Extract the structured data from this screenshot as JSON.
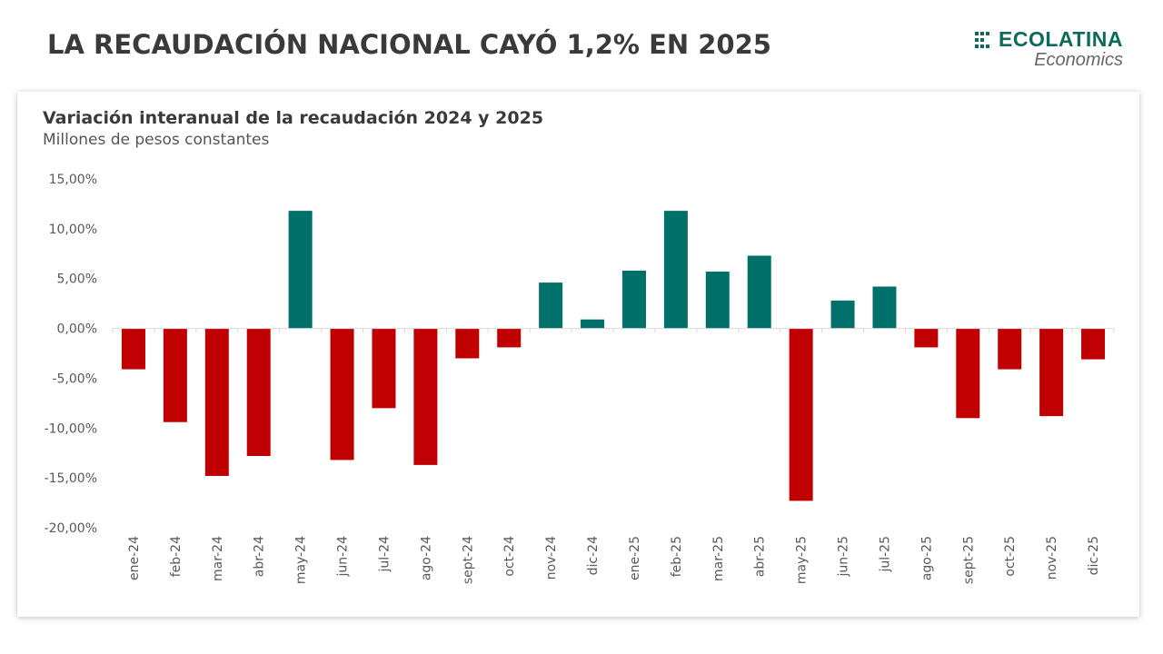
{
  "header": {
    "title": "LA RECAUDACIÓN NACIONAL CAYÓ 1,2% EN 2025",
    "logo_main": "ECOLATINA",
    "logo_sub": "Economics"
  },
  "colors": {
    "positive": "#00706a",
    "negative": "#c00000",
    "brand": "#0e6b5c"
  },
  "chart_data": {
    "type": "bar",
    "title": "Variación interanual de la recaudación 2024 y 2025",
    "subtitle": "Millones de pesos constantes",
    "categories": [
      "ene-24",
      "feb-24",
      "mar-24",
      "abr-24",
      "may-24",
      "jun-24",
      "jul-24",
      "ago-24",
      "sept-24",
      "oct-24",
      "nov-24",
      "dic-24",
      "ene-25",
      "feb-25",
      "mar-25",
      "abr-25",
      "may-25",
      "jun-25",
      "jul-25",
      "ago-25",
      "sept-25",
      "oct-25",
      "nov-25",
      "dic-25"
    ],
    "values": [
      -4.1,
      -9.4,
      -14.8,
      -12.8,
      11.8,
      -13.2,
      -8.0,
      -13.7,
      -3.0,
      -1.9,
      4.6,
      0.9,
      5.8,
      11.8,
      5.7,
      7.3,
      -17.3,
      2.8,
      4.2,
      -1.9,
      -9.0,
      -4.1,
      -8.8,
      -3.1
    ],
    "yticks": [
      15,
      10,
      5,
      0,
      -5,
      -10,
      -15,
      -20
    ],
    "ytick_labels": [
      "15,00%",
      "10,00%",
      "5,00%",
      "0,00%",
      "-5,00%",
      "-10,00%",
      "-15,00%",
      "-20,00%"
    ],
    "ylim": [
      -20,
      15
    ],
    "grid": false
  }
}
